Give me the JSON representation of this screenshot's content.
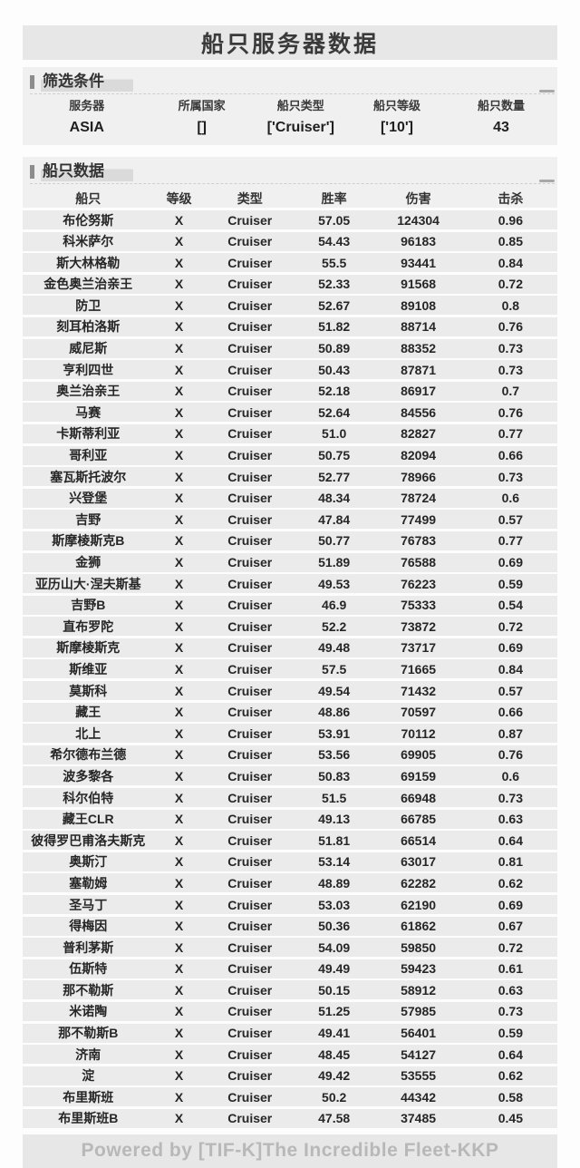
{
  "page": {
    "title": "船只服务器数据",
    "footer": "Powered by [TIF-K]The Incredible Fleet-KKP"
  },
  "theme": {
    "panel_bg": "#f0f0f0",
    "band_bg": "#ebebeb",
    "bar_bg": "#e7e7e7",
    "text": "#2e2e2e",
    "footer_text": "#b8b8b8"
  },
  "filter": {
    "section_title": "筛选条件",
    "fields": [
      {
        "label": "服务器",
        "value": "ASIA"
      },
      {
        "label": "所属国家",
        "value": "[]"
      },
      {
        "label": "船只类型",
        "value": "['Cruiser']"
      },
      {
        "label": "船只等级",
        "value": "['10']"
      },
      {
        "label": "船只数量",
        "value": "43"
      }
    ]
  },
  "table": {
    "section_title": "船只数据",
    "columns": [
      "船只",
      "等级",
      "类型",
      "胜率",
      "伤害",
      "击杀"
    ],
    "rows": [
      [
        "布伦努斯",
        "X",
        "Cruiser",
        "57.05",
        "124304",
        "0.96"
      ],
      [
        "科米萨尔",
        "X",
        "Cruiser",
        "54.43",
        "96183",
        "0.85"
      ],
      [
        "斯大林格勒",
        "X",
        "Cruiser",
        "55.5",
        "93441",
        "0.84"
      ],
      [
        "金色奥兰治亲王",
        "X",
        "Cruiser",
        "52.33",
        "91568",
        "0.72"
      ],
      [
        "防卫",
        "X",
        "Cruiser",
        "52.67",
        "89108",
        "0.8"
      ],
      [
        "刻耳柏洛斯",
        "X",
        "Cruiser",
        "51.82",
        "88714",
        "0.76"
      ],
      [
        "威尼斯",
        "X",
        "Cruiser",
        "50.89",
        "88352",
        "0.73"
      ],
      [
        "亨利四世",
        "X",
        "Cruiser",
        "50.43",
        "87871",
        "0.73"
      ],
      [
        "奥兰治亲王",
        "X",
        "Cruiser",
        "52.18",
        "86917",
        "0.7"
      ],
      [
        "马赛",
        "X",
        "Cruiser",
        "52.64",
        "84556",
        "0.76"
      ],
      [
        "卡斯蒂利亚",
        "X",
        "Cruiser",
        "51.0",
        "82827",
        "0.77"
      ],
      [
        "哥利亚",
        "X",
        "Cruiser",
        "50.75",
        "82094",
        "0.66"
      ],
      [
        "塞瓦斯托波尔",
        "X",
        "Cruiser",
        "52.77",
        "78966",
        "0.73"
      ],
      [
        "兴登堡",
        "X",
        "Cruiser",
        "48.34",
        "78724",
        "0.6"
      ],
      [
        "吉野",
        "X",
        "Cruiser",
        "47.84",
        "77499",
        "0.57"
      ],
      [
        "斯摩棱斯克B",
        "X",
        "Cruiser",
        "50.77",
        "76783",
        "0.77"
      ],
      [
        "金狮",
        "X",
        "Cruiser",
        "51.89",
        "76588",
        "0.69"
      ],
      [
        "亚历山大·涅夫斯基",
        "X",
        "Cruiser",
        "49.53",
        "76223",
        "0.59"
      ],
      [
        "吉野B",
        "X",
        "Cruiser",
        "46.9",
        "75333",
        "0.54"
      ],
      [
        "直布罗陀",
        "X",
        "Cruiser",
        "52.2",
        "73872",
        "0.72"
      ],
      [
        "斯摩棱斯克",
        "X",
        "Cruiser",
        "49.48",
        "73717",
        "0.69"
      ],
      [
        "斯维亚",
        "X",
        "Cruiser",
        "57.5",
        "71665",
        "0.84"
      ],
      [
        "莫斯科",
        "X",
        "Cruiser",
        "49.54",
        "71432",
        "0.57"
      ],
      [
        "藏王",
        "X",
        "Cruiser",
        "48.86",
        "70597",
        "0.66"
      ],
      [
        "北上",
        "X",
        "Cruiser",
        "53.91",
        "70112",
        "0.87"
      ],
      [
        "希尔德布兰德",
        "X",
        "Cruiser",
        "53.56",
        "69905",
        "0.76"
      ],
      [
        "波多黎各",
        "X",
        "Cruiser",
        "50.83",
        "69159",
        "0.6"
      ],
      [
        "科尔伯特",
        "X",
        "Cruiser",
        "51.5",
        "66948",
        "0.73"
      ],
      [
        "藏王CLR",
        "X",
        "Cruiser",
        "49.13",
        "66785",
        "0.63"
      ],
      [
        "彼得罗巴甫洛夫斯克",
        "X",
        "Cruiser",
        "51.81",
        "66514",
        "0.64"
      ],
      [
        "奥斯汀",
        "X",
        "Cruiser",
        "53.14",
        "63017",
        "0.81"
      ],
      [
        "塞勒姆",
        "X",
        "Cruiser",
        "48.89",
        "62282",
        "0.62"
      ],
      [
        "圣马丁",
        "X",
        "Cruiser",
        "53.03",
        "62190",
        "0.69"
      ],
      [
        "得梅因",
        "X",
        "Cruiser",
        "50.36",
        "61862",
        "0.67"
      ],
      [
        "普利茅斯",
        "X",
        "Cruiser",
        "54.09",
        "59850",
        "0.72"
      ],
      [
        "伍斯特",
        "X",
        "Cruiser",
        "49.49",
        "59423",
        "0.61"
      ],
      [
        "那不勒斯",
        "X",
        "Cruiser",
        "50.15",
        "58912",
        "0.63"
      ],
      [
        "米诺陶",
        "X",
        "Cruiser",
        "51.25",
        "57985",
        "0.73"
      ],
      [
        "那不勒斯B",
        "X",
        "Cruiser",
        "49.41",
        "56401",
        "0.59"
      ],
      [
        "济南",
        "X",
        "Cruiser",
        "48.45",
        "54127",
        "0.64"
      ],
      [
        "淀",
        "X",
        "Cruiser",
        "49.42",
        "53555",
        "0.62"
      ],
      [
        "布里斯班",
        "X",
        "Cruiser",
        "50.2",
        "44342",
        "0.58"
      ],
      [
        "布里斯班B",
        "X",
        "Cruiser",
        "47.58",
        "37485",
        "0.45"
      ]
    ]
  }
}
